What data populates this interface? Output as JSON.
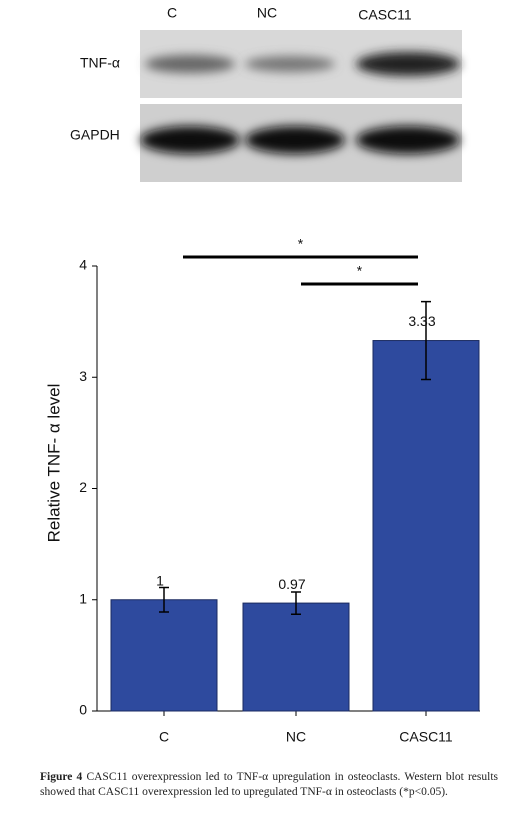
{
  "blot": {
    "lanes": [
      "C",
      "NC",
      "CASC11"
    ],
    "rows": [
      "TNF-α",
      "GAPDH"
    ]
  },
  "chart_data": {
    "type": "bar",
    "categories": [
      "C",
      "NC",
      "CASC11"
    ],
    "values": [
      1,
      0.97,
      3.33
    ],
    "errors": [
      0.11,
      0.1,
      0.35
    ],
    "color": "#2e4a9e",
    "ylabel": "Relative TNF- α level",
    "ylim": [
      0,
      4
    ],
    "yticks": [
      0,
      1,
      2,
      3,
      4
    ],
    "annotations": [
      "*",
      "*"
    ]
  },
  "caption": {
    "label": "Figure 4",
    "text": "CASC11 overexpression led to TNF-α upregulation in osteoclasts. Western blot results showed that CASC11 overexpression led to upregulated TNF-α in osteoclasts (*p<0.05)."
  }
}
